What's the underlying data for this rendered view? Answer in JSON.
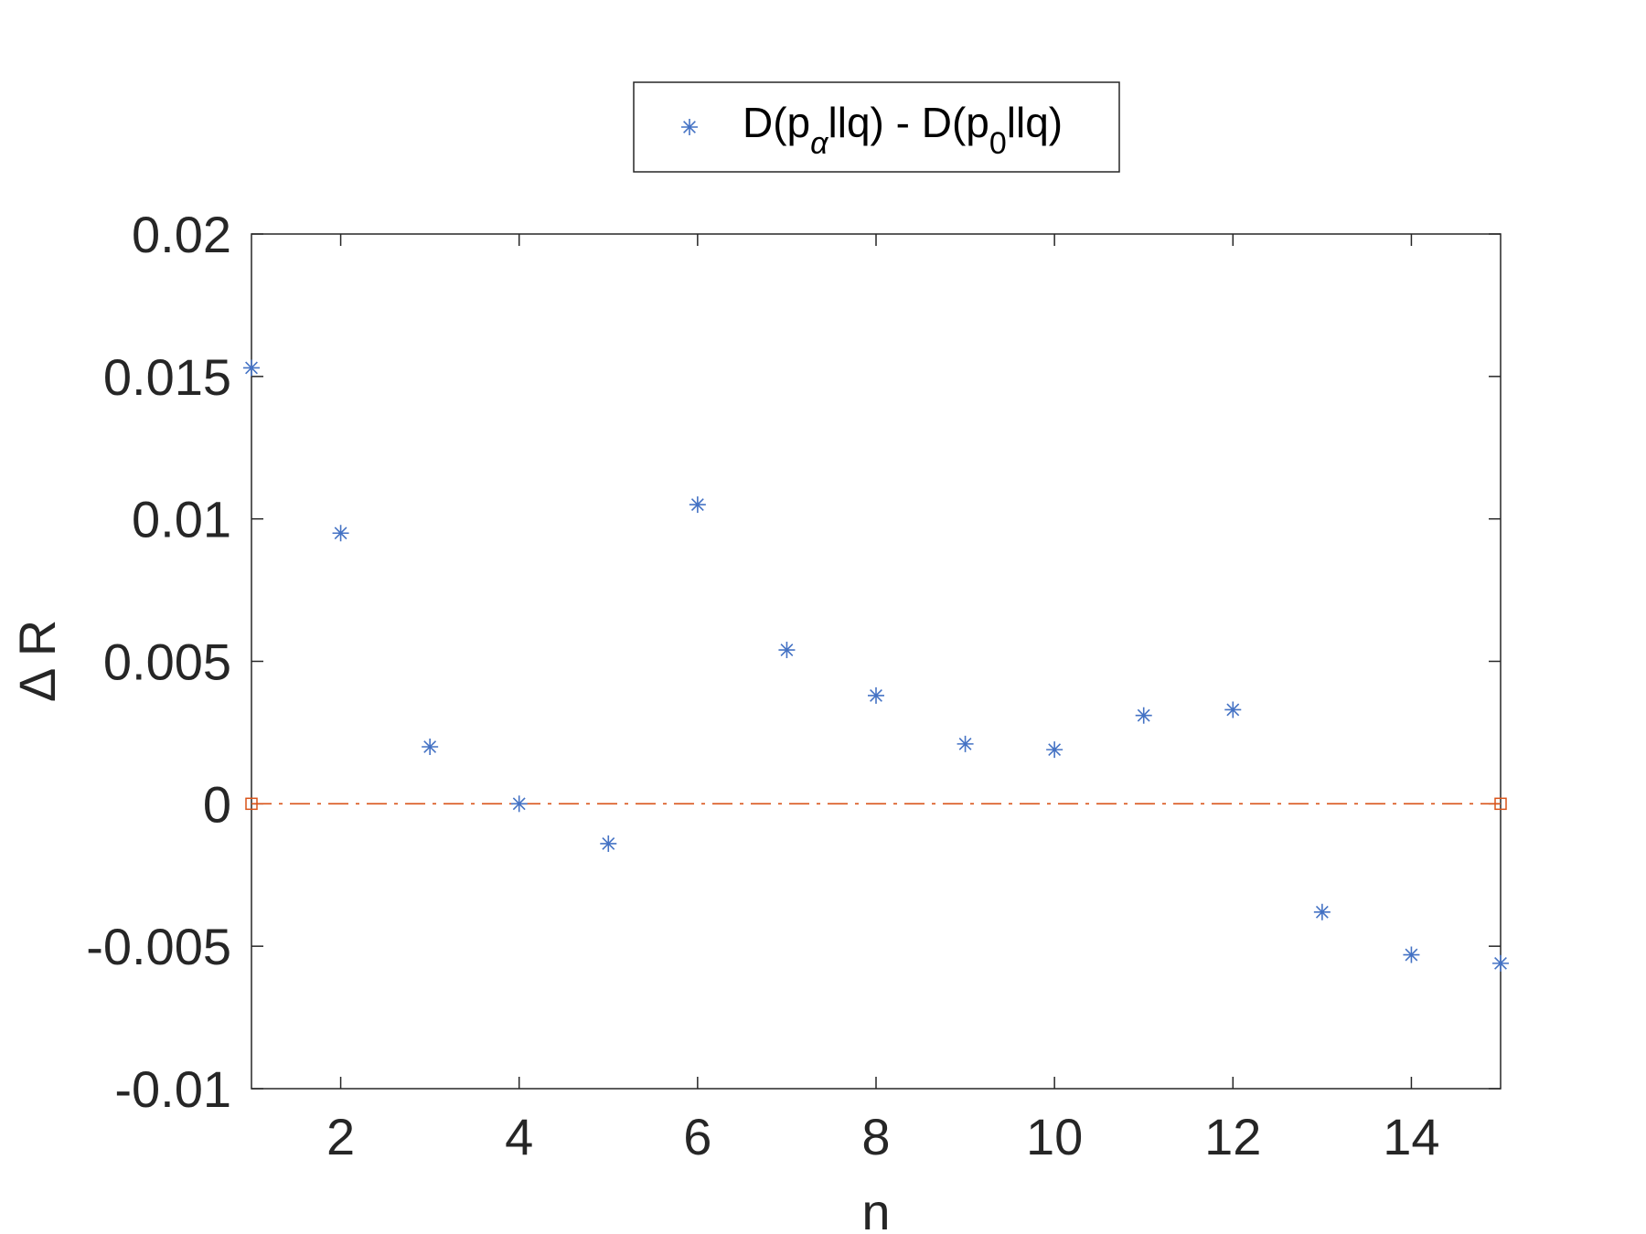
{
  "chart_data": {
    "type": "scatter",
    "xlabel": "n",
    "ylabel": "Δ R",
    "xlim": [
      1,
      15
    ],
    "ylim": [
      -0.01,
      0.02
    ],
    "xticks": [
      2,
      4,
      6,
      8,
      10,
      12,
      14
    ],
    "yticks": [
      -0.01,
      -0.005,
      0,
      0.005,
      0.01,
      0.015,
      0.02
    ],
    "ytick_labels": [
      "-0.01",
      "-0.005",
      "0",
      "0.005",
      "0.01",
      "0.015",
      "0.02"
    ],
    "grid": false,
    "legend_position": "top-center-outside",
    "series": [
      {
        "name": "D(pαllq) - D(p0llq)",
        "marker": "asterisk",
        "color": "#4472C4",
        "x": [
          1,
          2,
          3,
          4,
          5,
          6,
          7,
          8,
          9,
          10,
          11,
          12,
          13,
          14,
          15
        ],
        "y": [
          0.0153,
          0.0095,
          0.002,
          0.0,
          -0.0014,
          0.0105,
          0.0054,
          0.0038,
          0.0021,
          0.0019,
          0.0031,
          0.0033,
          -0.0038,
          -0.0053,
          -0.0056
        ]
      },
      {
        "name": "",
        "marker": "square",
        "line_style": "dash-dot",
        "color": "#D95319",
        "x": [
          1,
          15
        ],
        "y": [
          0,
          0
        ]
      }
    ],
    "legend": {
      "main": "D(p",
      "sub1": "α",
      "mid": "llq) - D(p",
      "sub2": "0",
      "end": "llq)"
    }
  }
}
